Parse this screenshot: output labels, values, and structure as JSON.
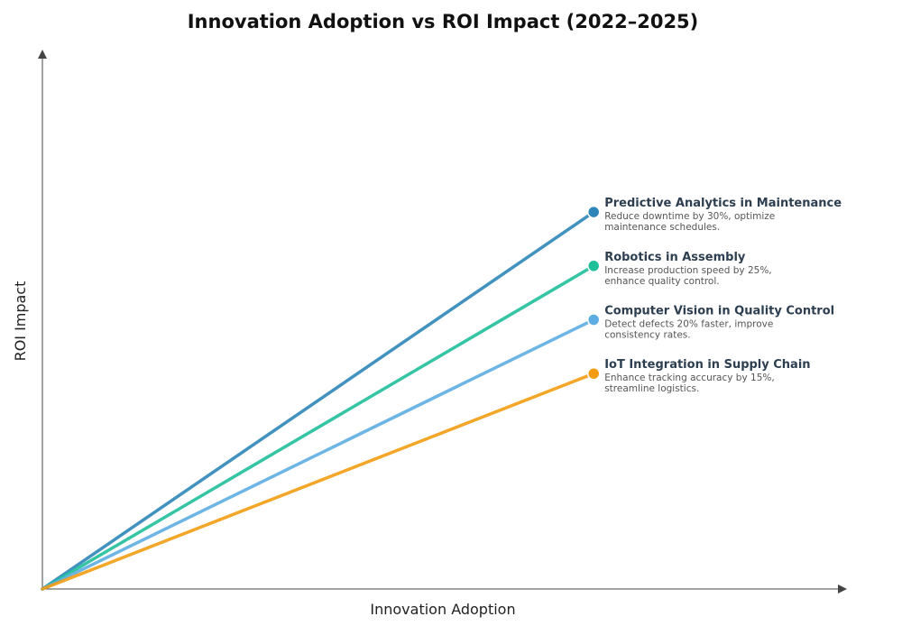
{
  "chart_data": {
    "type": "line",
    "title": "Innovation Adoption vs ROI Impact (2022–2025)",
    "xlabel": "Innovation Adoption",
    "ylabel": "ROI Impact",
    "xlim": [
      0,
      1
    ],
    "ylim": [
      0,
      1
    ],
    "grid": false,
    "legend": "inline-right",
    "series": [
      {
        "name": "Predictive Analytics in Maintenance",
        "description_lines": [
          "Reduce downtime by 30%, optimize",
          "maintenance schedules."
        ],
        "color": "#2e86b8",
        "x": [
          0,
          0.686
        ],
        "y": [
          0,
          0.7
        ]
      },
      {
        "name": "Robotics in Assembly",
        "description_lines": [
          "Increase production speed by 25%,",
          "enhance quality control."
        ],
        "color": "#1fbf9a",
        "x": [
          0,
          0.686
        ],
        "y": [
          0,
          0.6
        ]
      },
      {
        "name": "Computer Vision in Quality Control",
        "description_lines": [
          "Detect defects 20% faster, improve",
          "consistency rates."
        ],
        "color": "#5dade2",
        "x": [
          0,
          0.686
        ],
        "y": [
          0,
          0.5
        ]
      },
      {
        "name": "IoT Integration in Supply Chain",
        "description_lines": [
          "Enhance tracking accuracy by 15%,",
          "streamline logistics."
        ],
        "color": "#f39c12",
        "x": [
          0,
          0.686
        ],
        "y": [
          0,
          0.4
        ]
      }
    ]
  }
}
